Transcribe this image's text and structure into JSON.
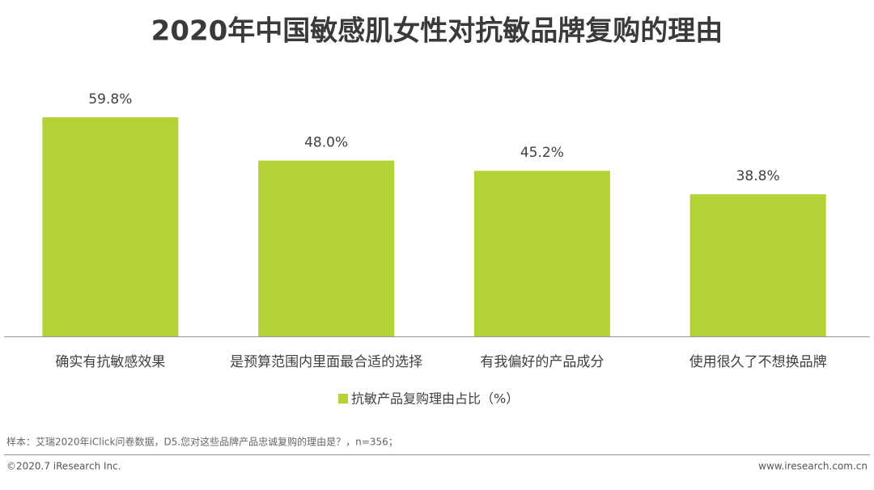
{
  "chart_data": {
    "type": "bar",
    "title": "2020年中国敏感肌女性对抗敏品牌复购的理由",
    "categories": [
      "确实有抗敏感效果",
      "是预算范围内里面最合适的选择",
      "有我偏好的产品成分",
      "使用很久了不想换品牌"
    ],
    "series": [
      {
        "name": "抗敏产品复购理由占比（%）",
        "color": "#b2d235",
        "values": [
          59.8,
          48.0,
          45.2,
          38.8
        ],
        "value_labels": [
          "59.8%",
          "48.0%",
          "45.2%",
          "38.8%"
        ]
      }
    ],
    "note": "样本：艾瑞2020年iClick问卷数据，D5.您对这些品牌产品忠诚复购的理由是？，n=356；",
    "copyright": "©2020.7 iResearch Inc.",
    "website": "www.iresearch.com.cn"
  }
}
